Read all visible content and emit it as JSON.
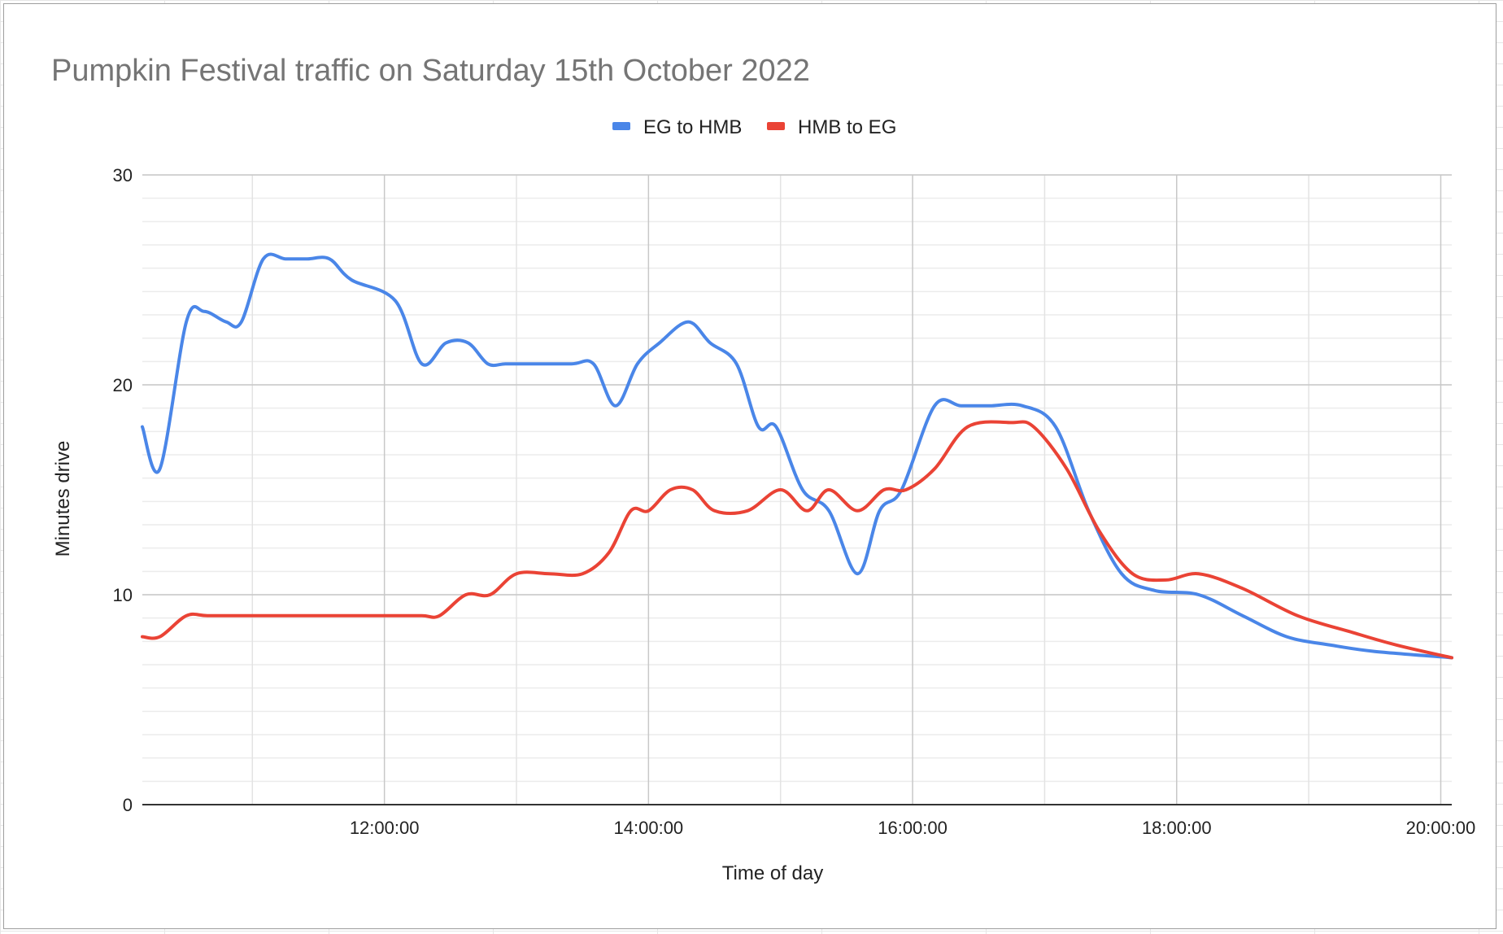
{
  "chart_data": {
    "type": "line",
    "title": "Pumpkin Festival traffic on Saturday 15th October 2022",
    "xlabel": "Time of day",
    "ylabel": "Minutes drive",
    "ylim": [
      0,
      30
    ],
    "y_ticks": [
      0,
      10,
      20,
      30
    ],
    "y_minor_step": 1.1111,
    "xlim": [
      "10:10:00",
      "20:05:00"
    ],
    "x_ticks": [
      "12:00:00",
      "14:00:00",
      "16:00:00",
      "18:00:00",
      "20:00:00"
    ],
    "x_minor_ticks": [
      "11:00:00",
      "13:00:00",
      "15:00:00",
      "17:00:00",
      "19:00:00"
    ],
    "grid": true,
    "legend_position": "top",
    "series": [
      {
        "name": "EG to HMB",
        "color": "#4a86e8",
        "points": [
          [
            "10:10:00",
            18
          ],
          [
            "10:18:00",
            16
          ],
          [
            "10:30:00",
            23
          ],
          [
            "10:38:00",
            23.5
          ],
          [
            "10:48:00",
            23
          ],
          [
            "10:55:00",
            23
          ],
          [
            "11:05:00",
            26
          ],
          [
            "11:15:00",
            26
          ],
          [
            "11:25:00",
            26
          ],
          [
            "11:35:00",
            26
          ],
          [
            "11:45:00",
            25
          ],
          [
            "12:05:00",
            24
          ],
          [
            "12:17:00",
            21
          ],
          [
            "12:28:00",
            22
          ],
          [
            "12:38:00",
            22
          ],
          [
            "12:47:00",
            21
          ],
          [
            "12:55:00",
            21
          ],
          [
            "13:05:00",
            21
          ],
          [
            "13:25:00",
            21
          ],
          [
            "13:35:00",
            21
          ],
          [
            "13:45:00",
            19
          ],
          [
            "13:55:00",
            21
          ],
          [
            "14:05:00",
            22
          ],
          [
            "14:18:00",
            23
          ],
          [
            "14:28:00",
            22
          ],
          [
            "14:40:00",
            21
          ],
          [
            "14:50:00",
            18
          ],
          [
            "14:58:00",
            18
          ],
          [
            "15:10:00",
            15
          ],
          [
            "15:22:00",
            14
          ],
          [
            "15:35:00",
            11
          ],
          [
            "15:45:00",
            14
          ],
          [
            "15:55:00",
            15
          ],
          [
            "16:10:00",
            19
          ],
          [
            "16:22:00",
            19
          ],
          [
            "16:35:00",
            19
          ],
          [
            "16:50:00",
            19
          ],
          [
            "17:05:00",
            18
          ],
          [
            "17:20:00",
            14
          ],
          [
            "17:35:00",
            11
          ],
          [
            "17:50:00",
            10.2
          ],
          [
            "18:10:00",
            10
          ],
          [
            "18:30:00",
            9
          ],
          [
            "18:50:00",
            8
          ],
          [
            "19:10:00",
            7.6
          ],
          [
            "19:30:00",
            7.3
          ],
          [
            "20:05:00",
            7
          ]
        ]
      },
      {
        "name": "HMB to EG",
        "color": "#ea4335",
        "points": [
          [
            "10:10:00",
            8
          ],
          [
            "10:18:00",
            8
          ],
          [
            "10:30:00",
            9
          ],
          [
            "10:40:00",
            9
          ],
          [
            "11:00:00",
            9
          ],
          [
            "11:30:00",
            9
          ],
          [
            "12:00:00",
            9
          ],
          [
            "12:17:00",
            9
          ],
          [
            "12:25:00",
            9
          ],
          [
            "12:37:00",
            10
          ],
          [
            "12:48:00",
            10
          ],
          [
            "13:00:00",
            11
          ],
          [
            "13:15:00",
            11
          ],
          [
            "13:30:00",
            11
          ],
          [
            "13:42:00",
            12
          ],
          [
            "13:52:00",
            14
          ],
          [
            "14:00:00",
            14
          ],
          [
            "14:10:00",
            15
          ],
          [
            "14:20:00",
            15
          ],
          [
            "14:30:00",
            14
          ],
          [
            "14:45:00",
            14
          ],
          [
            "15:00:00",
            15
          ],
          [
            "15:12:00",
            14
          ],
          [
            "15:22:00",
            15
          ],
          [
            "15:35:00",
            14
          ],
          [
            "15:47:00",
            15
          ],
          [
            "15:57:00",
            15
          ],
          [
            "16:10:00",
            16
          ],
          [
            "16:25:00",
            18
          ],
          [
            "16:45:00",
            18.2
          ],
          [
            "16:55:00",
            18
          ],
          [
            "17:10:00",
            16
          ],
          [
            "17:25:00",
            13
          ],
          [
            "17:40:00",
            11
          ],
          [
            "17:55:00",
            10.7
          ],
          [
            "18:10:00",
            11
          ],
          [
            "18:30:00",
            10.3
          ],
          [
            "18:55:00",
            9
          ],
          [
            "19:20:00",
            8.2
          ],
          [
            "19:40:00",
            7.6
          ],
          [
            "20:05:00",
            7
          ]
        ]
      }
    ]
  }
}
